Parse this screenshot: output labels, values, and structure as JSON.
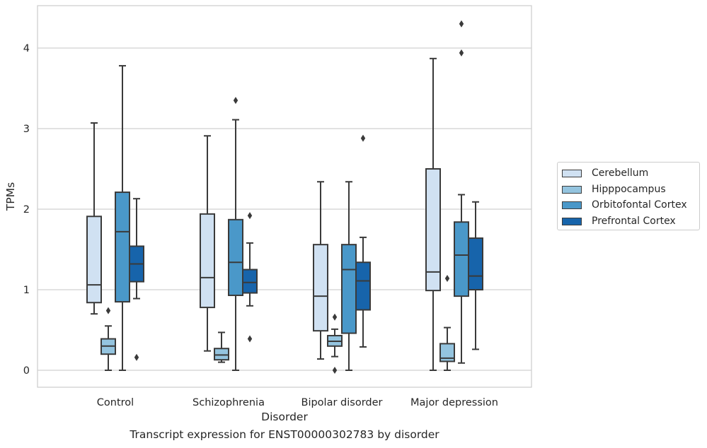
{
  "chart_data": {
    "type": "boxplot",
    "title": "Transcript expression for ENST00000302783 by disorder",
    "xlabel": "Disorder",
    "ylabel": "TPMs",
    "ylim": [
      -0.2,
      4.5
    ],
    "yticks": [
      "0",
      "1",
      "2",
      "3",
      "4"
    ],
    "grid": "horizontal",
    "legend_position": "right",
    "categories": [
      "Control",
      "Schizophrenia",
      "Bipolar disorder",
      "Major depression"
    ],
    "series": [
      {
        "name": "Cerebellum",
        "color": "#d0e1f2",
        "boxes": [
          {
            "whislo": 0.7,
            "q1": 0.84,
            "med": 1.06,
            "q3": 1.91,
            "whishi": 3.07,
            "fliers": []
          },
          {
            "whislo": 0.24,
            "q1": 0.78,
            "med": 1.15,
            "q3": 1.94,
            "whishi": 2.91,
            "fliers": []
          },
          {
            "whislo": 0.14,
            "q1": 0.49,
            "med": 0.92,
            "q3": 1.56,
            "whishi": 2.34,
            "fliers": []
          },
          {
            "whislo": 0.0,
            "q1": 0.99,
            "med": 1.22,
            "q3": 2.5,
            "whishi": 3.87,
            "fliers": []
          }
        ]
      },
      {
        "name": "Hipppocampus",
        "color": "#94c4df",
        "boxes": [
          {
            "whislo": 0.0,
            "q1": 0.2,
            "med": 0.3,
            "q3": 0.39,
            "whishi": 0.55,
            "fliers": [
              0.74
            ]
          },
          {
            "whislo": 0.1,
            "q1": 0.13,
            "med": 0.19,
            "q3": 0.27,
            "whishi": 0.47,
            "fliers": []
          },
          {
            "whislo": 0.17,
            "q1": 0.3,
            "med": 0.36,
            "q3": 0.43,
            "whishi": 0.51,
            "fliers": [
              0.66,
              0.0
            ]
          },
          {
            "whislo": 0.0,
            "q1": 0.11,
            "med": 0.15,
            "q3": 0.33,
            "whishi": 0.53,
            "fliers": [
              1.14
            ]
          }
        ]
      },
      {
        "name": "Orbitofontal Cortex",
        "color": "#4a98c9",
        "boxes": [
          {
            "whislo": 0.0,
            "q1": 0.85,
            "med": 1.72,
            "q3": 2.21,
            "whishi": 3.78,
            "fliers": []
          },
          {
            "whislo": 0.0,
            "q1": 0.93,
            "med": 1.34,
            "q3": 1.87,
            "whishi": 3.11,
            "fliers": [
              3.35
            ]
          },
          {
            "whislo": 0.0,
            "q1": 0.46,
            "med": 1.25,
            "q3": 1.56,
            "whishi": 2.34,
            "fliers": []
          },
          {
            "whislo": 0.09,
            "q1": 0.92,
            "med": 1.43,
            "q3": 1.84,
            "whishi": 2.18,
            "fliers": [
              4.3,
              3.94
            ]
          }
        ]
      },
      {
        "name": "Prefrontal Cortex",
        "color": "#1764ab",
        "boxes": [
          {
            "whislo": 0.89,
            "q1": 1.1,
            "med": 1.32,
            "q3": 1.54,
            "whishi": 2.13,
            "fliers": [
              0.16
            ]
          },
          {
            "whislo": 0.8,
            "q1": 0.96,
            "med": 1.09,
            "q3": 1.25,
            "whishi": 1.58,
            "fliers": [
              1.92,
              0.39
            ]
          },
          {
            "whislo": 0.29,
            "q1": 0.75,
            "med": 1.11,
            "q3": 1.34,
            "whishi": 1.65,
            "fliers": [
              2.88
            ]
          },
          {
            "whislo": 0.26,
            "q1": 1.0,
            "med": 1.17,
            "q3": 1.64,
            "whishi": 2.09,
            "fliers": []
          }
        ]
      }
    ]
  }
}
